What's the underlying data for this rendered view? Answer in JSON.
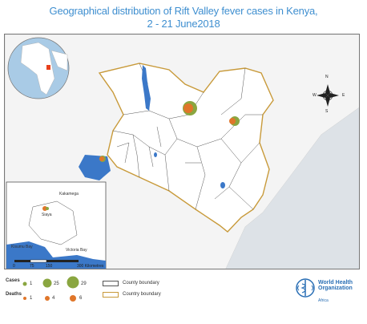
{
  "title": {
    "line1": "Geographical distribution of Rift Valley fever cases in Kenya,",
    "line2": "2 - 21 June2018"
  },
  "compass": {
    "n": "N",
    "s": "S",
    "e": "E",
    "w": "W"
  },
  "inset": {
    "place_labels": [
      "Kakamega",
      "Siaya",
      "Kisumu Bay",
      "Victoria Bay"
    ],
    "scale_ticks": [
      "0",
      "75",
      "150",
      "300 Kilometres"
    ]
  },
  "legend": {
    "cases_label": "Cases",
    "deaths_label": "Deaths",
    "cases_values": [
      "1",
      "25",
      "29"
    ],
    "deaths_values": [
      "1",
      "4",
      "6"
    ],
    "boundaries": [
      "County boundary",
      "Country boundary"
    ]
  },
  "who": {
    "name_lines": [
      "World Health",
      "Organization"
    ],
    "region": "Africa"
  },
  "colors": {
    "title": "#3f8fd0",
    "land": "#ffffff",
    "outside": "#dfe4e8",
    "water": "#3b78c8",
    "kenya_border": "#c89a3a",
    "cases": "#8aa640",
    "deaths": "#e0762a"
  }
}
